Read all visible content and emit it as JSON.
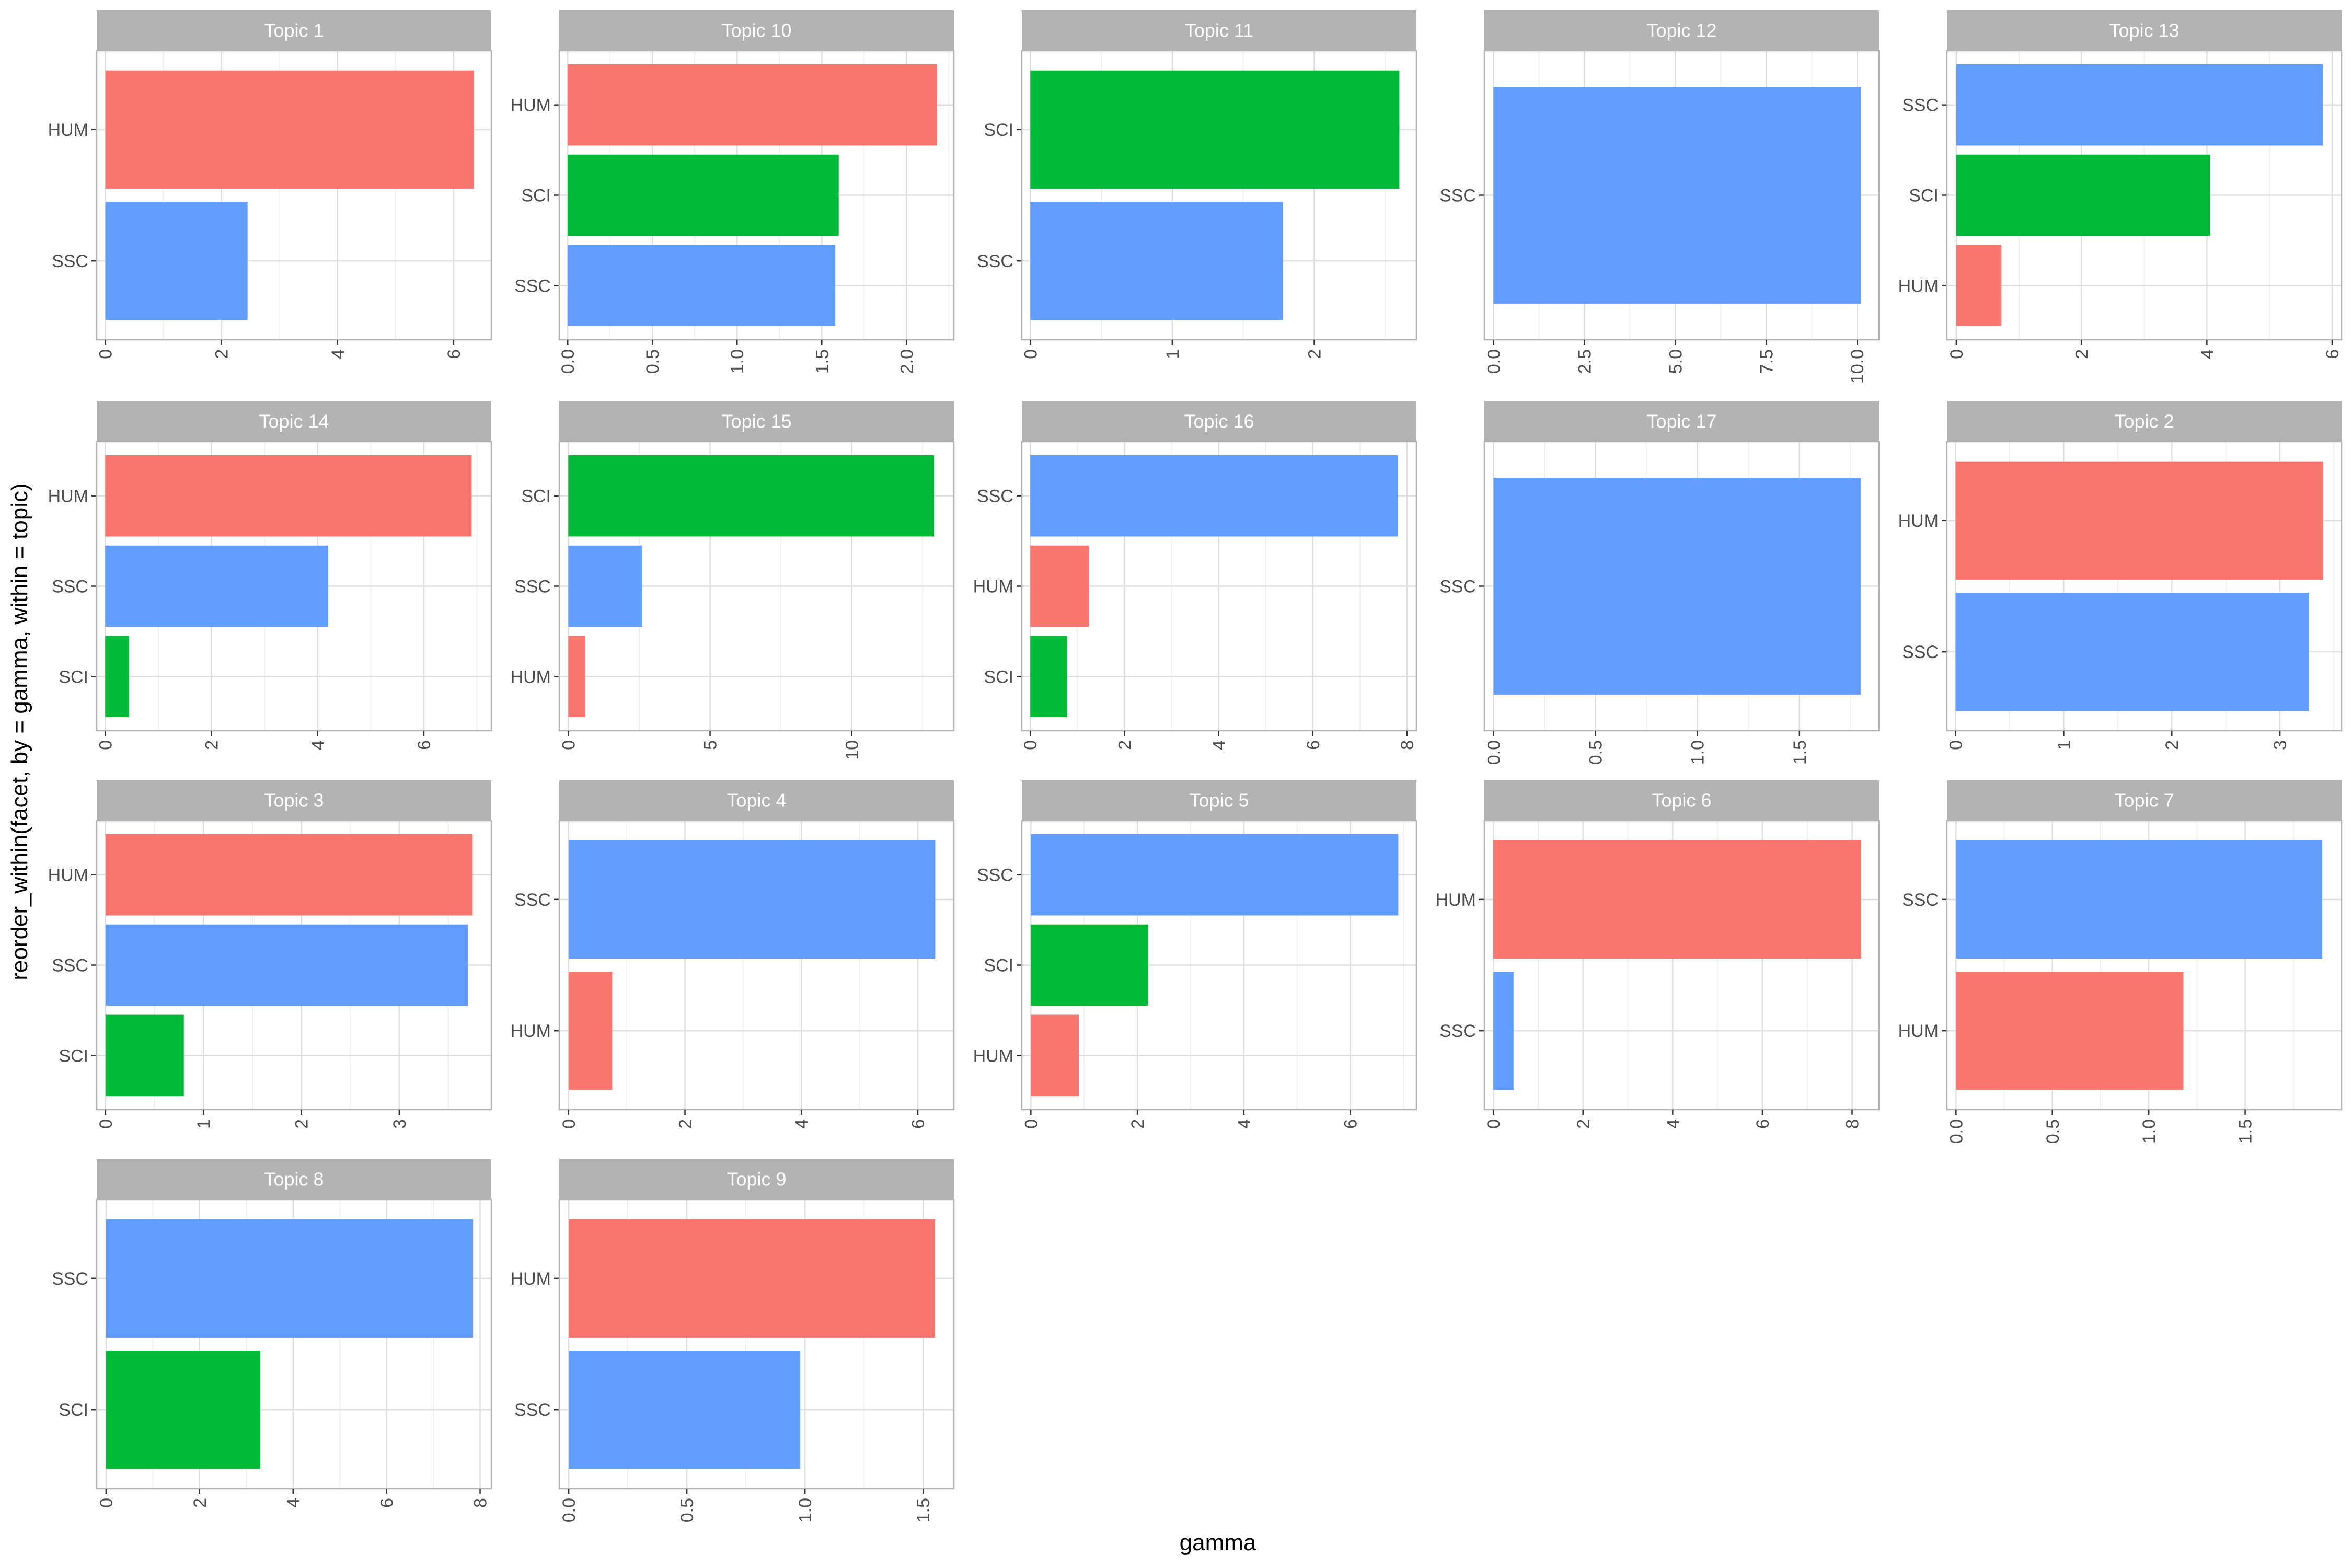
{
  "chart_data": {
    "type": "bar",
    "orientation": "horizontal",
    "facet_by": "topic",
    "xlabel": "gamma",
    "ylabel": "reorder_within(facet, by = gamma, within = topic)",
    "grid": true,
    "colors": {
      "HUM": "#F8766D",
      "SCI": "#00BA38",
      "SSC": "#619CFF"
    },
    "panels": [
      {
        "title": "Topic 1",
        "categories": [
          "HUM",
          "SSC"
        ],
        "values": [
          6.35,
          2.45
        ],
        "ticks": [
          "0",
          "2",
          "4",
          "6"
        ],
        "tick_values": [
          0,
          2,
          4,
          6
        ],
        "xlim": [
          -0.15,
          6.65
        ]
      },
      {
        "title": "Topic 10",
        "categories": [
          "HUM",
          "SCI",
          "SSC"
        ],
        "values": [
          2.18,
          1.6,
          1.58
        ],
        "ticks": [
          "0.0",
          "0.5",
          "1.0",
          "1.5",
          "2.0"
        ],
        "tick_values": [
          0,
          0.5,
          1,
          1.5,
          2
        ],
        "xlim": [
          -0.05,
          2.28
        ]
      },
      {
        "title": "Topic 11",
        "categories": [
          "SCI",
          "SSC"
        ],
        "values": [
          2.6,
          1.78
        ],
        "ticks": [
          "0",
          "1",
          "2"
        ],
        "tick_values": [
          0,
          1,
          2
        ],
        "xlim": [
          -0.06,
          2.72
        ]
      },
      {
        "title": "Topic 12",
        "categories": [
          "SSC"
        ],
        "values": [
          10.1
        ],
        "ticks": [
          "0.0",
          "2.5",
          "5.0",
          "7.5",
          "10.0"
        ],
        "tick_values": [
          0,
          2.5,
          5,
          7.5,
          10
        ],
        "xlim": [
          -0.25,
          10.6
        ]
      },
      {
        "title": "Topic 13",
        "categories": [
          "SSC",
          "SCI",
          "HUM"
        ],
        "values": [
          5.85,
          4.05,
          0.72
        ],
        "ticks": [
          "0",
          "2",
          "4",
          "6"
        ],
        "tick_values": [
          0,
          2,
          4,
          6
        ],
        "xlim": [
          -0.15,
          6.15
        ]
      },
      {
        "title": "Topic 14",
        "categories": [
          "HUM",
          "SSC",
          "SCI"
        ],
        "values": [
          6.9,
          4.2,
          0.45
        ],
        "ticks": [
          "0",
          "2",
          "4",
          "6"
        ],
        "tick_values": [
          0,
          2,
          4,
          6
        ],
        "xlim": [
          -0.16,
          7.27
        ]
      },
      {
        "title": "Topic 15",
        "categories": [
          "SCI",
          "SSC",
          "HUM"
        ],
        "values": [
          12.9,
          2.6,
          0.6
        ],
        "ticks": [
          "0",
          "5",
          "10"
        ],
        "tick_values": [
          0,
          5,
          10
        ],
        "xlim": [
          -0.32,
          13.6
        ]
      },
      {
        "title": "Topic 16",
        "categories": [
          "SSC",
          "HUM",
          "SCI"
        ],
        "values": [
          7.8,
          1.25,
          0.78
        ],
        "ticks": [
          "0",
          "2",
          "4",
          "6",
          "8"
        ],
        "tick_values": [
          0,
          2,
          4,
          6,
          8
        ],
        "xlim": [
          -0.18,
          8.2
        ]
      },
      {
        "title": "Topic 17",
        "categories": [
          "SSC"
        ],
        "values": [
          1.8
        ],
        "ticks": [
          "0.0",
          "0.5",
          "1.0",
          "1.5"
        ],
        "tick_values": [
          0,
          0.5,
          1,
          1.5
        ],
        "xlim": [
          -0.045,
          1.89
        ]
      },
      {
        "title": "Topic 2",
        "categories": [
          "HUM",
          "SSC"
        ],
        "values": [
          3.4,
          3.27
        ],
        "ticks": [
          "0",
          "1",
          "2",
          "3"
        ],
        "tick_values": [
          0,
          1,
          2,
          3
        ],
        "xlim": [
          -0.08,
          3.57
        ]
      },
      {
        "title": "Topic 3",
        "categories": [
          "HUM",
          "SSC",
          "SCI"
        ],
        "values": [
          3.75,
          3.7,
          0.8
        ],
        "ticks": [
          "0",
          "1",
          "2",
          "3"
        ],
        "tick_values": [
          0,
          1,
          2,
          3
        ],
        "xlim": [
          -0.09,
          3.94
        ]
      },
      {
        "title": "Topic 4",
        "categories": [
          "SSC",
          "HUM"
        ],
        "values": [
          6.3,
          0.75
        ],
        "ticks": [
          "0",
          "2",
          "4",
          "6"
        ],
        "tick_values": [
          0,
          2,
          4,
          6
        ],
        "xlim": [
          -0.16,
          6.62
        ]
      },
      {
        "title": "Topic 5",
        "categories": [
          "SSC",
          "SCI",
          "HUM"
        ],
        "values": [
          6.9,
          2.2,
          0.9
        ],
        "ticks": [
          "0",
          "2",
          "4",
          "6"
        ],
        "tick_values": [
          0,
          2,
          4,
          6
        ],
        "xlim": [
          -0.17,
          7.24
        ]
      },
      {
        "title": "Topic 6",
        "categories": [
          "HUM",
          "SSC"
        ],
        "values": [
          8.2,
          0.45
        ],
        "ticks": [
          "0",
          "2",
          "4",
          "6",
          "8"
        ],
        "tick_values": [
          0,
          2,
          4,
          6,
          8
        ],
        "xlim": [
          -0.2,
          8.6
        ]
      },
      {
        "title": "Topic 7",
        "categories": [
          "SSC",
          "HUM"
        ],
        "values": [
          1.9,
          1.18
        ],
        "ticks": [
          "0.0",
          "0.5",
          "1.0",
          "1.5"
        ],
        "tick_values": [
          0,
          0.5,
          1,
          1.5
        ],
        "xlim": [
          -0.047,
          2.0
        ]
      },
      {
        "title": "Topic 8",
        "categories": [
          "SSC",
          "SCI"
        ],
        "values": [
          7.85,
          3.3
        ],
        "ticks": [
          "0",
          "2",
          "4",
          "6",
          "8"
        ],
        "tick_values": [
          0,
          2,
          4,
          6,
          8
        ],
        "xlim": [
          -0.2,
          8.24
        ]
      },
      {
        "title": "Topic 9",
        "categories": [
          "HUM",
          "SSC"
        ],
        "values": [
          1.55,
          0.98
        ],
        "ticks": [
          "0.0",
          "0.5",
          "1.0",
          "1.5"
        ],
        "tick_values": [
          0,
          0.5,
          1,
          1.5
        ],
        "xlim": [
          -0.04,
          1.63
        ]
      }
    ]
  }
}
